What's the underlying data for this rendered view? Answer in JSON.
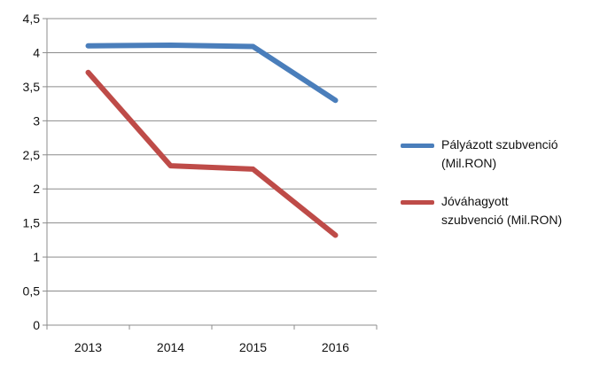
{
  "chart_data": {
    "type": "line",
    "title": "",
    "xlabel": "",
    "ylabel": "",
    "categories": [
      "2013",
      "2014",
      "2015",
      "2016"
    ],
    "ylim": [
      0,
      4.5
    ],
    "yticks": [
      "0",
      "0,5",
      "1",
      "1,5",
      "2",
      "2,5",
      "3",
      "3,5",
      "4",
      "4,5"
    ],
    "grid": true,
    "legend_position": "right",
    "series": [
      {
        "name": "Pályázott szubvenció (Mil.RON)",
        "name_lines": [
          "Pályázott szubvenció",
          "(Mil.RON)"
        ],
        "color": "#4a7ebb",
        "values": [
          4.1,
          4.11,
          4.09,
          3.3
        ]
      },
      {
        "name": "Jóváhagyott szubvenció (Mil.RON)",
        "name_lines": [
          "Jóváhagyott",
          "szubvenció (Mil.RON)"
        ],
        "color": "#be4b48",
        "values": [
          3.71,
          2.34,
          2.29,
          1.32
        ]
      }
    ]
  }
}
